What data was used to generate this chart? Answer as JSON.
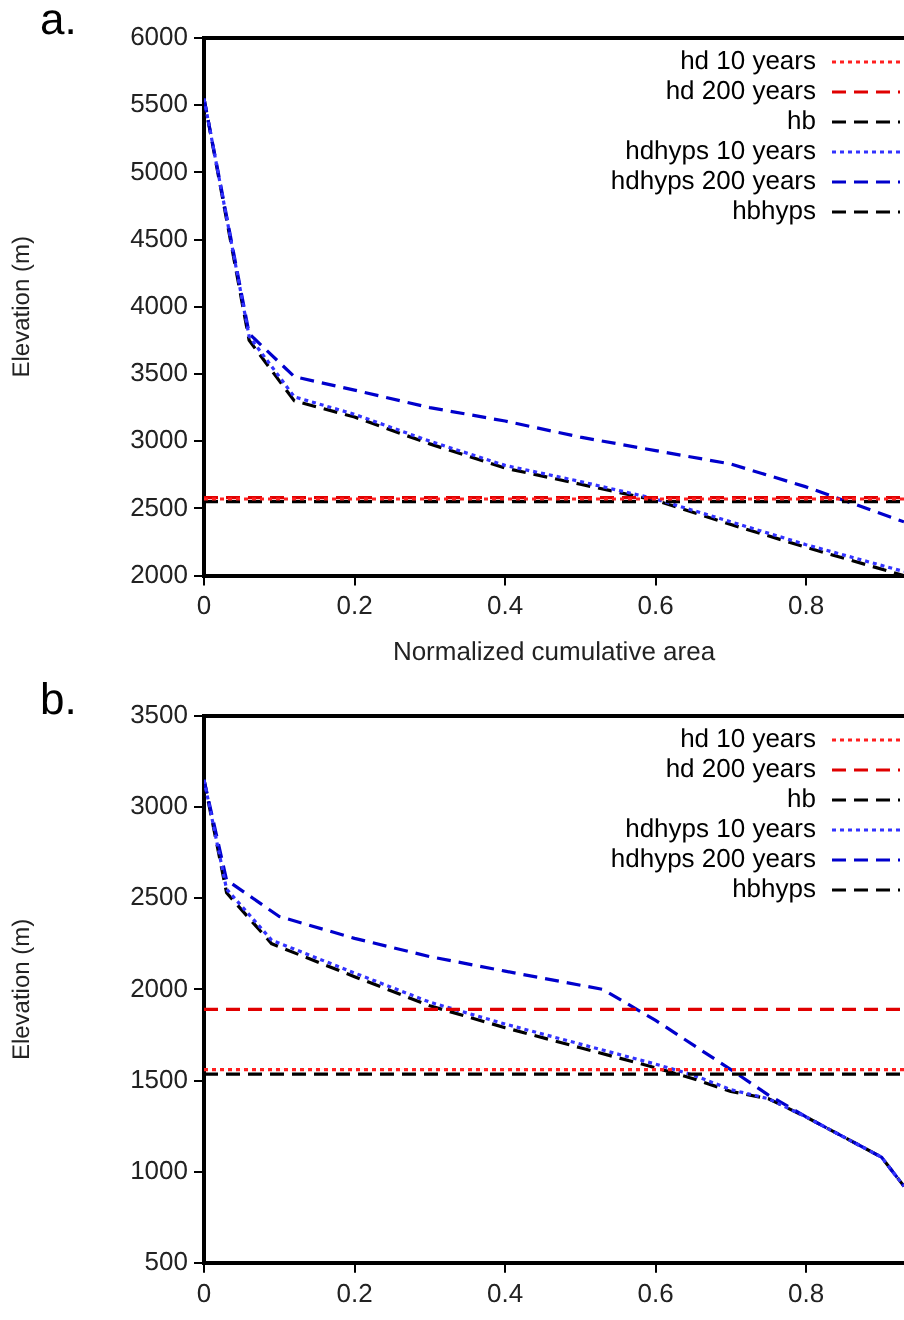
{
  "chart_data": [
    {
      "type": "line",
      "annotations": [
        "a."
      ],
      "xlabel": "Normalized cumulative area",
      "ylabel": "Elevation (m)",
      "xlim": [
        0,
        0.93
      ],
      "xticks": [
        0,
        0.2,
        0.4,
        0.6,
        0.8
      ],
      "ylim": [
        2000,
        6000
      ],
      "yticks": [
        2000,
        2500,
        3000,
        3500,
        4000,
        4500,
        5000,
        5500,
        6000
      ],
      "grid": false,
      "legend": "top right",
      "series": [
        {
          "name": "hd 10 years",
          "color": "#ff2020",
          "line_style": "dotted",
          "x": [
            0,
            0.93
          ],
          "values": [
            2570,
            2570
          ]
        },
        {
          "name": "hd 200 years",
          "color": "#e00000",
          "line_style": "dashed",
          "x": [
            0,
            0.93
          ],
          "values": [
            2580,
            2580
          ]
        },
        {
          "name": "hb",
          "color": "#000000",
          "line_style": "dashed",
          "x": [
            0,
            0.93
          ],
          "values": [
            2550,
            2550
          ]
        },
        {
          "name": "hdhyps 10 years",
          "color": "#3333ff",
          "line_style": "dotted",
          "x": [
            0,
            0.06,
            0.12,
            0.2,
            0.3,
            0.4,
            0.5,
            0.6,
            0.7,
            0.8,
            0.93
          ],
          "values": [
            5550,
            3780,
            3330,
            3200,
            3000,
            2820,
            2700,
            2570,
            2400,
            2230,
            2030
          ]
        },
        {
          "name": "hdhyps 200 years",
          "color": "#0000cc",
          "line_style": "dashed",
          "x": [
            0,
            0.06,
            0.12,
            0.2,
            0.3,
            0.4,
            0.5,
            0.6,
            0.7,
            0.8,
            0.93
          ],
          "values": [
            5550,
            3800,
            3480,
            3380,
            3250,
            3150,
            3030,
            2930,
            2830,
            2660,
            2400
          ]
        },
        {
          "name": "hbhyps",
          "color": "#000000",
          "line_style": "dashed",
          "x": [
            0,
            0.06,
            0.12,
            0.2,
            0.3,
            0.4,
            0.5,
            0.6,
            0.7,
            0.8,
            0.93
          ],
          "values": [
            5550,
            3750,
            3300,
            3180,
            2980,
            2800,
            2680,
            2560,
            2380,
            2210,
            2000
          ]
        }
      ]
    },
    {
      "type": "line",
      "annotations": [
        "b."
      ],
      "ylabel": "Elevation (m)",
      "xlim": [
        0,
        0.93
      ],
      "xticks": [
        0,
        0.2,
        0.4,
        0.6,
        0.8
      ],
      "ylim": [
        500,
        3500
      ],
      "yticks": [
        500,
        1000,
        1500,
        2000,
        2500,
        3000,
        3500
      ],
      "grid": false,
      "legend": "top right",
      "series": [
        {
          "name": "hd 10 years",
          "color": "#ff2020",
          "line_style": "dotted",
          "x": [
            0,
            0.93
          ],
          "values": [
            1560,
            1560
          ]
        },
        {
          "name": "hd 200 years",
          "color": "#e00000",
          "line_style": "dashed",
          "x": [
            0,
            0.93
          ],
          "values": [
            1890,
            1890
          ]
        },
        {
          "name": "hb",
          "color": "#000000",
          "line_style": "dashed",
          "x": [
            0,
            0.93
          ],
          "values": [
            1535,
            1535
          ]
        },
        {
          "name": "hdhyps 10 years",
          "color": "#3333ff",
          "line_style": "dotted",
          "x": [
            0,
            0.03,
            0.09,
            0.2,
            0.3,
            0.4,
            0.5,
            0.6,
            0.65,
            0.7,
            0.75,
            0.8,
            0.9,
            0.93
          ],
          "values": [
            3150,
            2550,
            2270,
            2090,
            1930,
            1810,
            1700,
            1590,
            1530,
            1450,
            1400,
            1300,
            1080,
            920
          ]
        },
        {
          "name": "hdhyps 200 years",
          "color": "#0000cc",
          "line_style": "dashed",
          "x": [
            0,
            0.03,
            0.1,
            0.2,
            0.3,
            0.4,
            0.53,
            0.6,
            0.7,
            0.75,
            0.8,
            0.9,
            0.93
          ],
          "values": [
            3150,
            2600,
            2400,
            2280,
            2180,
            2100,
            2000,
            1830,
            1560,
            1420,
            1300,
            1080,
            920
          ]
        },
        {
          "name": "hbhyps",
          "color": "#000000",
          "line_style": "dashed",
          "x": [
            0,
            0.03,
            0.09,
            0.2,
            0.3,
            0.4,
            0.5,
            0.6,
            0.65,
            0.7,
            0.75,
            0.8,
            0.9,
            0.93
          ],
          "values": [
            3150,
            2530,
            2250,
            2070,
            1910,
            1790,
            1680,
            1570,
            1510,
            1440,
            1400,
            1300,
            1080,
            920
          ]
        }
      ]
    }
  ]
}
